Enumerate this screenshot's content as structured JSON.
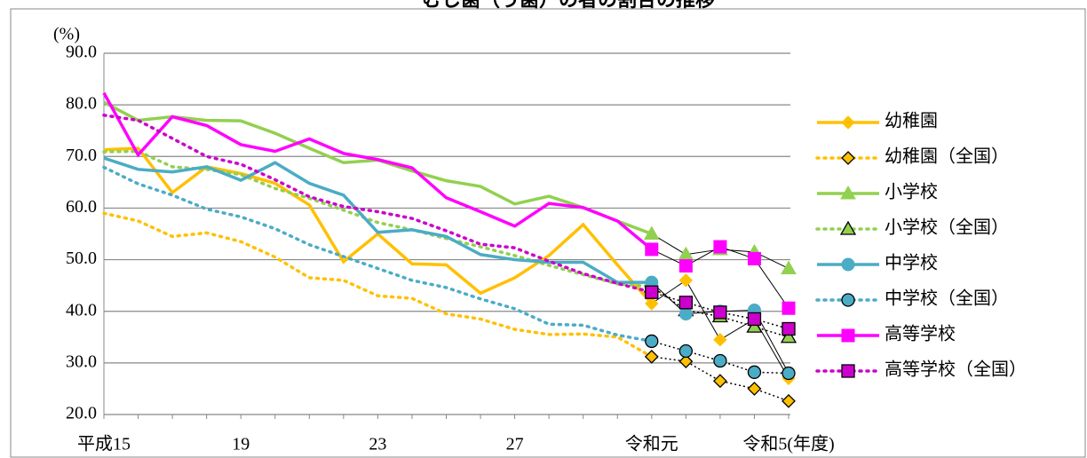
{
  "chart_data": {
    "type": "line",
    "title": "むし歯（う歯）の者の割合の推移",
    "y_label": "(%)",
    "categories": [
      "平成15",
      null,
      null,
      null,
      "19",
      null,
      null,
      null,
      "23",
      null,
      null,
      null,
      "27",
      null,
      null,
      null,
      "令和元",
      null,
      null,
      null,
      "令和5(年度)"
    ],
    "ylim": [
      20,
      90
    ],
    "yticks": [
      {
        "value": 20,
        "label": "20.0"
      },
      {
        "value": 30,
        "label": "30.0"
      },
      {
        "value": 40,
        "label": "40.0"
      },
      {
        "value": 50,
        "label": "50.0"
      },
      {
        "value": 60,
        "label": "60.0"
      },
      {
        "value": 70,
        "label": "70.0"
      },
      {
        "value": 80,
        "label": "80.0"
      },
      {
        "value": 90,
        "label": "90.0"
      }
    ],
    "grid": true,
    "legend": "right",
    "series": [
      {
        "name": "幼稚園",
        "color": "#ffc000",
        "marker": "diamond",
        "dashed": false,
        "values": [
          71.3,
          71.6,
          63.0,
          68.0,
          66.7,
          64.8,
          60.6,
          49.6,
          55.0,
          49.2,
          49.0,
          43.5,
          46.5,
          50.8,
          56.8,
          49.0,
          41.5,
          46.0,
          34.5,
          38.5,
          27.0
        ]
      },
      {
        "name": "幼稚園（全国）",
        "color": "#ffc000",
        "marker": "diamond",
        "dashed": true,
        "values": [
          59.0,
          57.5,
          54.5,
          55.2,
          53.5,
          50.5,
          46.5,
          46.0,
          43.0,
          42.5,
          39.5,
          38.5,
          36.5,
          35.5,
          35.6,
          35.0,
          31.2,
          30.3,
          26.5,
          25.0,
          22.6
        ]
      },
      {
        "name": "小学校",
        "color": "#92d050",
        "marker": "triangle",
        "dashed": false,
        "values": [
          80.5,
          77.0,
          77.7,
          77.0,
          76.9,
          74.5,
          71.6,
          68.8,
          69.3,
          67.2,
          65.3,
          64.2,
          60.8,
          62.3,
          60.1,
          57.5,
          55.0,
          51.0,
          52.0,
          51.5,
          48.3
        ]
      },
      {
        "name": "小学校（全国）",
        "color": "#92d050",
        "marker": "triangle",
        "dashed": true,
        "values": [
          70.9,
          71.0,
          68.0,
          67.5,
          66.5,
          63.8,
          61.9,
          59.6,
          57.2,
          55.8,
          54.1,
          52.5,
          50.8,
          48.9,
          47.1,
          45.3,
          44.8,
          40.2,
          39.0,
          37.0,
          35.0
        ]
      },
      {
        "name": "中学校",
        "color": "#4bacc6",
        "marker": "circle",
        "dashed": false,
        "values": [
          69.7,
          67.5,
          67.0,
          68.0,
          65.4,
          68.8,
          64.8,
          62.5,
          55.3,
          55.8,
          54.5,
          51.0,
          50.0,
          49.5,
          49.5,
          45.6,
          45.6,
          39.5,
          40.0,
          40.2,
          28.0
        ]
      },
      {
        "name": "中学校（全国）",
        "color": "#4bacc6",
        "marker": "circle",
        "dashed": true,
        "values": [
          67.9,
          64.7,
          62.5,
          59.8,
          58.3,
          56.0,
          52.9,
          50.6,
          48.3,
          46.0,
          44.6,
          42.4,
          40.5,
          37.5,
          37.3,
          35.4,
          34.2,
          32.3,
          30.4,
          28.2,
          28.0
        ]
      },
      {
        "name": "高等学校",
        "color": "#ff00ff",
        "marker": "square",
        "dashed": false,
        "values": [
          82.3,
          70.3,
          77.7,
          76.0,
          72.3,
          71.0,
          73.4,
          70.6,
          69.4,
          67.8,
          62.0,
          59.3,
          56.5,
          60.9,
          60.1,
          57.5,
          52.0,
          48.8,
          52.5,
          50.2,
          40.6
        ]
      },
      {
        "name": "高等学校（全国）",
        "color": "#cc00cc",
        "marker": "square",
        "dashed": true,
        "values": [
          78.0,
          77.0,
          73.5,
          70.0,
          68.5,
          65.5,
          62.2,
          60.3,
          59.3,
          58.0,
          55.6,
          53.0,
          52.3,
          49.7,
          47.3,
          45.4,
          43.7,
          41.7,
          39.8,
          38.5,
          36.6
        ]
      }
    ]
  }
}
